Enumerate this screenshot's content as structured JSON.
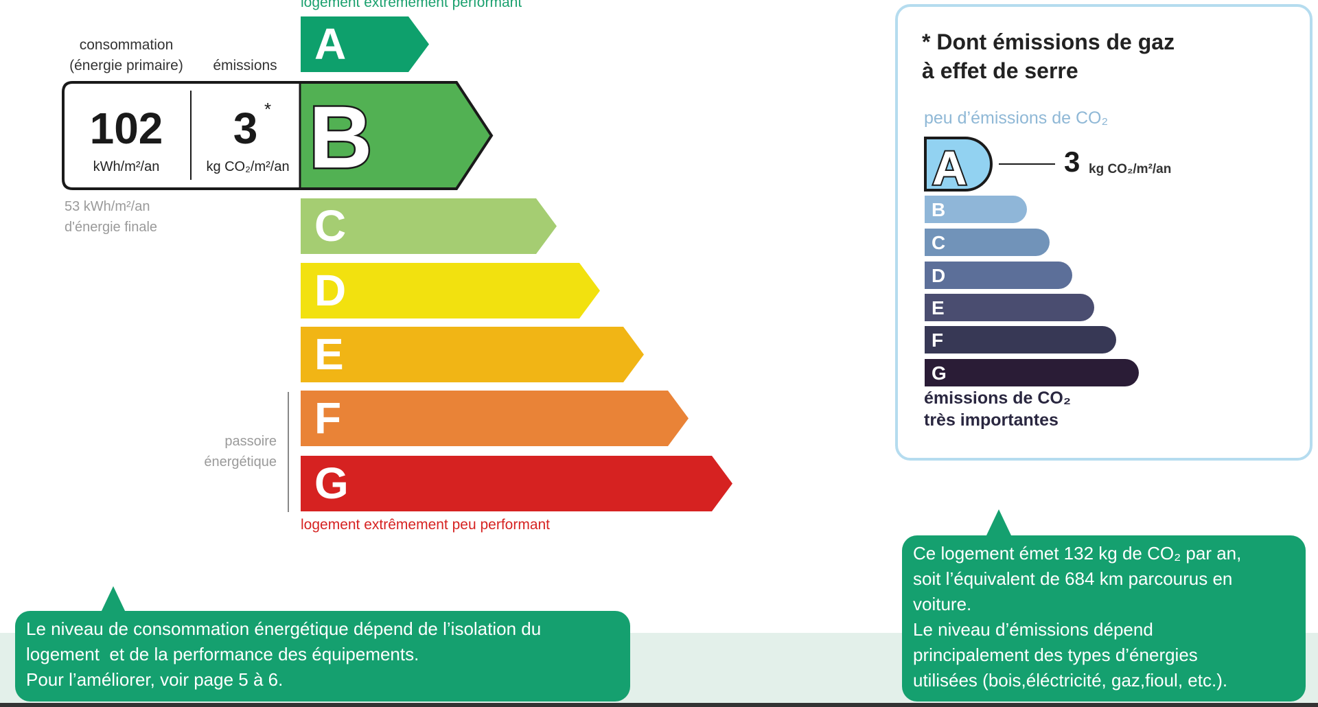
{
  "energy_label": {
    "top_caption": "logement extrêmement performant",
    "bottom_caption": "logement extrêmement peu performant",
    "consumption_label_1": "consommation",
    "consumption_label_2": "(énergie primaire)",
    "emissions_label": "émissions",
    "consumption_value": "102",
    "consumption_unit": "kWh/m²/an",
    "emissions_value": "3",
    "emissions_asterisk": "*",
    "emissions_unit": "kg CO₂/m²/an",
    "final_energy_1": "53 kWh/m²/an",
    "final_energy_2": "d'énergie finale",
    "passoire_1": "passoire",
    "passoire_2": "énergétique",
    "current_class": "B",
    "classes": [
      {
        "letter": "A",
        "color": "#0ea06c"
      },
      {
        "letter": "B",
        "color": "#52b153"
      },
      {
        "letter": "C",
        "color": "#a5cd72"
      },
      {
        "letter": "D",
        "color": "#f2e10f"
      },
      {
        "letter": "E",
        "color": "#f1b515"
      },
      {
        "letter": "F",
        "color": "#e98337"
      },
      {
        "letter": "G",
        "color": "#d62221"
      }
    ]
  },
  "ghg_panel": {
    "title_1": "* Dont émissions de gaz",
    "title_2": "à effet de serre",
    "top_caption": "peu d’émissions de CO₂",
    "current_class": "A",
    "value": "3",
    "unit": "kg CO₂/m²/an",
    "classes": [
      {
        "letter": "B",
        "color": "#8fb6d8"
      },
      {
        "letter": "C",
        "color": "#7193b9"
      },
      {
        "letter": "D",
        "color": "#5c6f99"
      },
      {
        "letter": "E",
        "color": "#4a4d70"
      },
      {
        "letter": "F",
        "color": "#373855"
      },
      {
        "letter": "G",
        "color": "#2a1c36"
      }
    ],
    "badge_color": "#92d2f1",
    "bottom_caption_1": "émissions de CO₂",
    "bottom_caption_2": "très importantes"
  },
  "callouts": {
    "left": [
      "Le niveau de consommation énergétique dépend de l’isolation du",
      "logement  et de la performance des équipements.",
      "Pour l’améliorer, voir page 5 à 6."
    ],
    "right": [
      "Ce logement émet 132 kg de CO₂ par an,",
      "soit l’équivalent de 684 km parcourus en",
      "voiture.",
      "Le niveau d’émissions dépend",
      "principalement des types d’énergies",
      "utilisées (bois,éléctricité, gaz,fioul, etc.)."
    ]
  }
}
